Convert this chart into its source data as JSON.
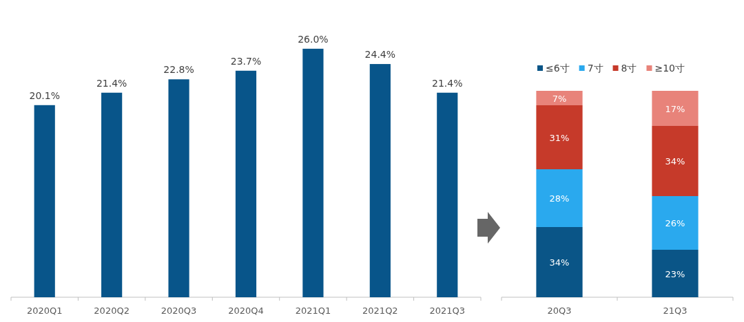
{
  "chart_data": [
    {
      "type": "bar",
      "categories": [
        "2020Q1",
        "2020Q2",
        "2020Q3",
        "2020Q4",
        "2021Q1",
        "2021Q2",
        "2021Q3"
      ],
      "values": [
        20.1,
        21.4,
        22.8,
        23.7,
        26.0,
        24.4,
        21.4
      ],
      "value_labels": [
        "20.1%",
        "21.4%",
        "22.8%",
        "23.7%",
        "26.0%",
        "24.4%",
        "21.4%"
      ],
      "color": "#08558a"
    },
    {
      "type": "bar",
      "stacked": true,
      "categories": [
        "20Q3",
        "21Q3"
      ],
      "legend": "top",
      "ylim": [
        0,
        100
      ],
      "tick_labels": "x",
      "series": [
        {
          "name": "≤6寸",
          "color": "#0a5587",
          "values": [
            34,
            23
          ],
          "value_labels": [
            "34%",
            "23%"
          ]
        },
        {
          "name": "7寸",
          "color": "#2aa9ee",
          "values": [
            28,
            26
          ],
          "value_labels": [
            "28%",
            "26%"
          ]
        },
        {
          "name": "8寸",
          "color": "#c63a2a",
          "values": [
            31,
            34
          ],
          "value_labels": [
            "31%",
            "34%"
          ]
        },
        {
          "name": "≥10寸",
          "color": "#e8837a",
          "values": [
            7,
            17
          ],
          "value_labels": [
            "7%",
            "17%"
          ]
        }
      ]
    }
  ]
}
